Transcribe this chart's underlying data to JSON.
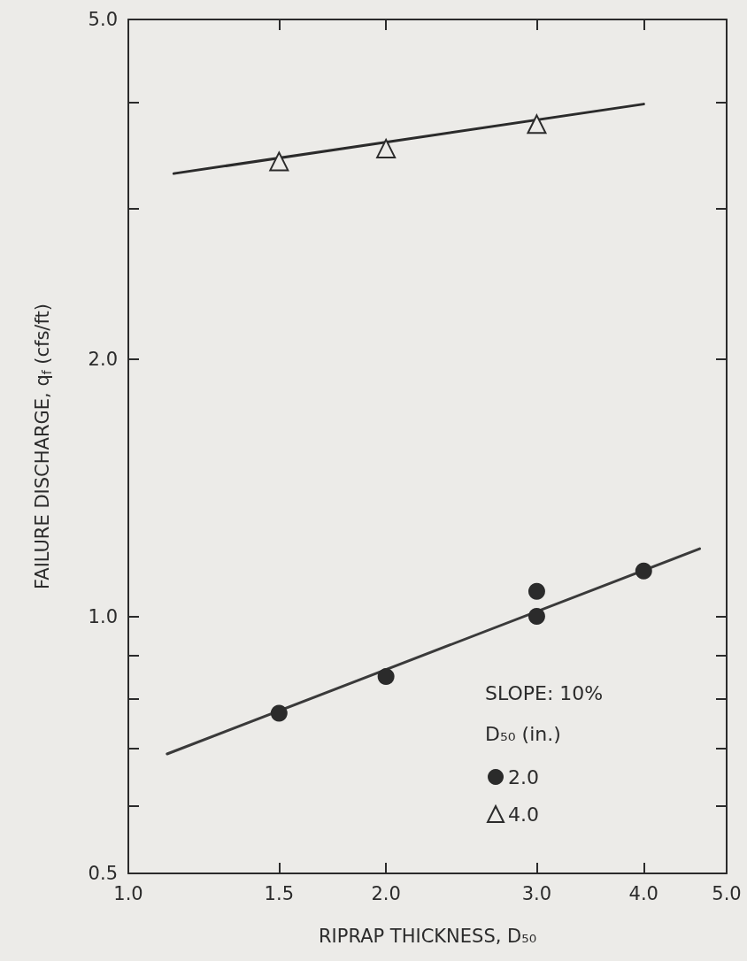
{
  "chart_data": {
    "type": "scatter",
    "xlabel": "RIPRAP THICKNESS, D₅₀",
    "ylabel": "FAILURE DISCHARGE, q$_{f}$ (cfs/ft)",
    "legend_title": "D₅₀ (in.)",
    "annotations": [
      "SLOPE: 10%"
    ],
    "log": "xy",
    "xlim": [
      1,
      5
    ],
    "xticks": [
      {
        "value": 1,
        "label": "1.0"
      },
      {
        "value": 1.5,
        "label": "1.5"
      },
      {
        "value": 2,
        "label": "2.0"
      },
      {
        "value": 3,
        "label": "3.0"
      },
      {
        "value": 4,
        "label": "4.0"
      },
      {
        "value": 5,
        "label": "5.0"
      }
    ],
    "ylim": [
      0.5,
      5
    ],
    "yticks": [
      0.5,
      {
        "value": 0.6,
        "label": null
      },
      {
        "value": 0.7,
        "label": null
      },
      {
        "value": 0.8,
        "label": null
      },
      {
        "value": 0.9,
        "label": null
      },
      {
        "value": 1,
        "label": "1.0"
      },
      {
        "value": 2,
        "label": "2.0"
      },
      {
        "value": 3,
        "label": null
      },
      {
        "value": 4,
        "label": null
      },
      {
        "value": 5,
        "label": "5.0"
      }
    ],
    "grid": false,
    "legend": "bottom right",
    "series": [
      {
        "name": "2.0",
        "marker": "circle",
        "color": "#2b2b2b",
        "x": [
          1.5,
          2,
          3,
          3,
          4
        ],
        "values": [
          0.77,
          0.85,
          1.0,
          1.07,
          1.13
        ]
      },
      {
        "name": "4.0",
        "marker": "triangle",
        "color": "#2b2b2b",
        "x": [
          1.5,
          2,
          3
        ],
        "values": [
          3.41,
          3.53,
          3.77
        ]
      },
      {
        "type": "line",
        "marker": "none",
        "color": "#3a3a3a",
        "x": [
          1.11,
          4.65
        ],
        "values": [
          0.69,
          1.2
        ]
      },
      {
        "type": "line",
        "marker": "none",
        "color": "#2b2b2b",
        "x": [
          1.13,
          4.0
        ],
        "values": [
          3.3,
          3.98
        ]
      }
    ]
  }
}
